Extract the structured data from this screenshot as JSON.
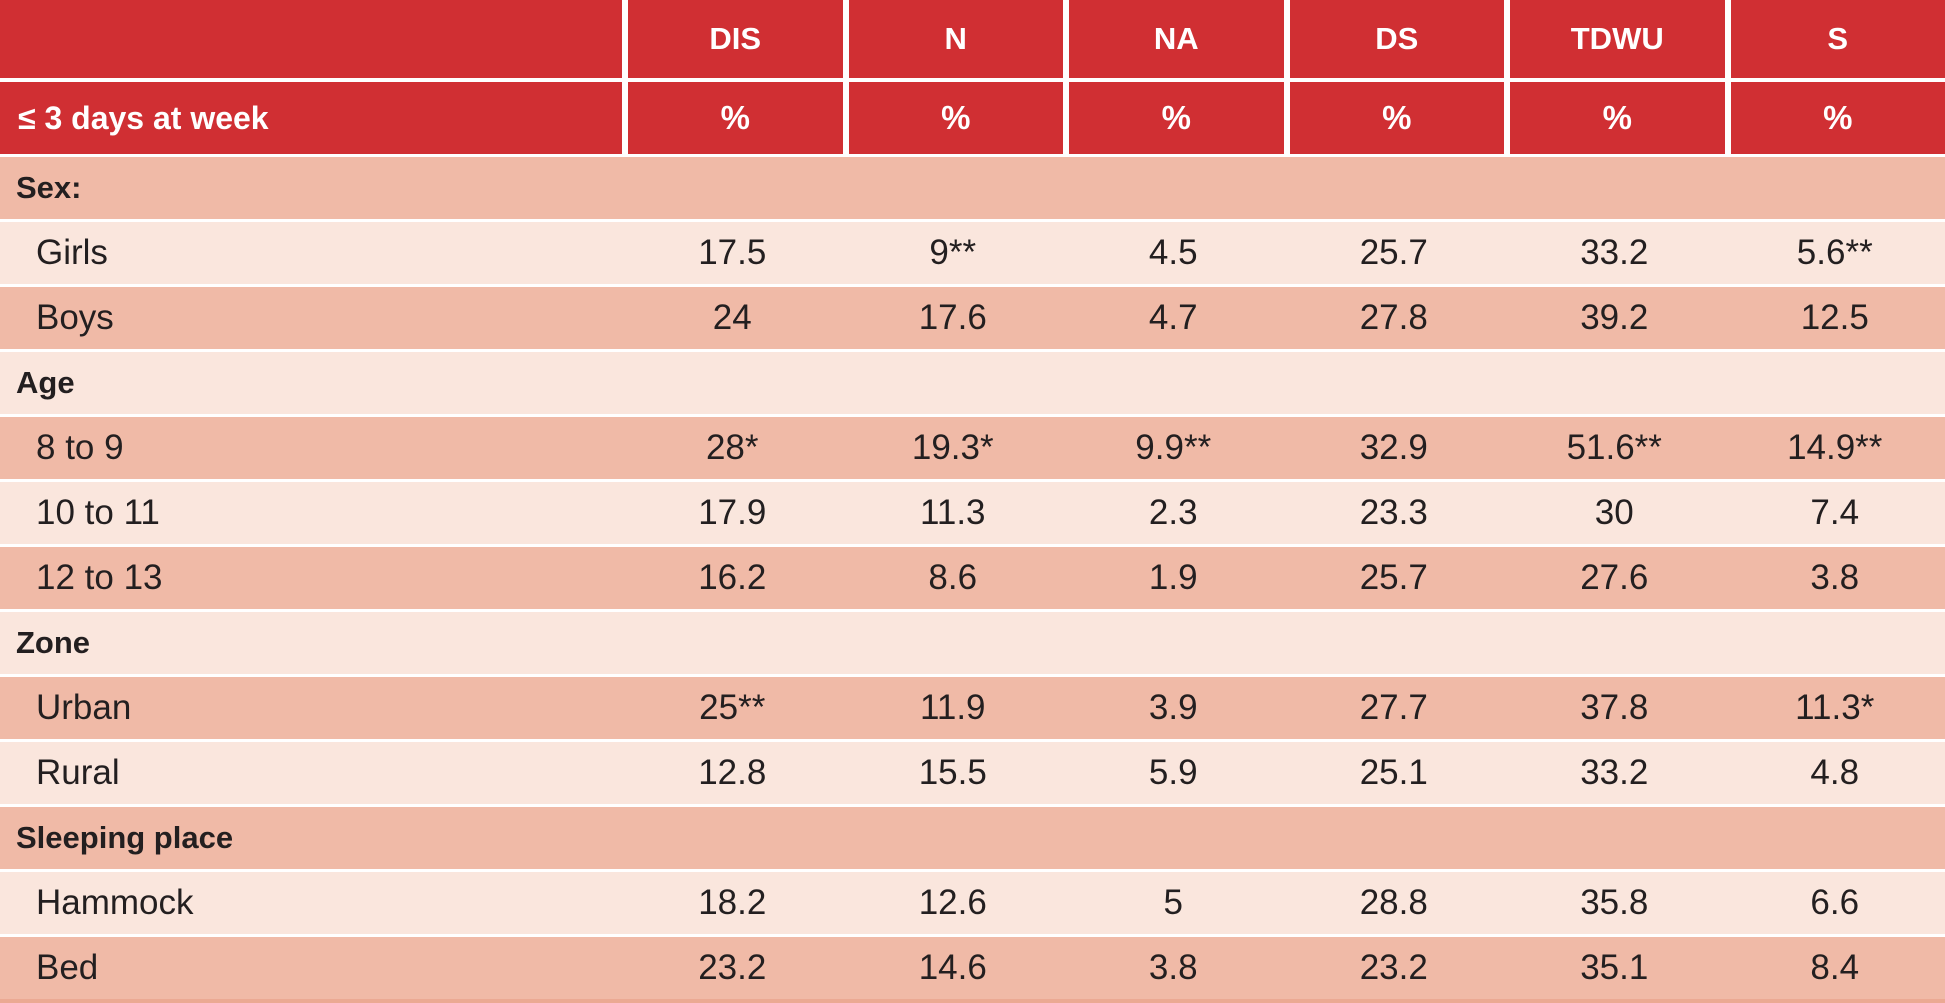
{
  "colors": {
    "header_red": "#d02f33",
    "band_dark": "#f0baa7",
    "band_light": "#fae6dd",
    "text": "#231f20",
    "header_text": "#ffffff"
  },
  "header": {
    "corner_top": "",
    "row_label": "≤ 3 days at week",
    "columns": [
      "DIS",
      "N",
      "NA",
      "DS",
      "TDWU",
      "S"
    ],
    "unit": "%"
  },
  "rows": [
    {
      "type": "section",
      "label": "Sex:"
    },
    {
      "type": "data",
      "label": "Girls",
      "values": [
        "17.5",
        "9**",
        "4.5",
        "25.7",
        "33.2",
        "5.6**"
      ]
    },
    {
      "type": "data",
      "label": "Boys",
      "values": [
        "24",
        "17.6",
        "4.7",
        "27.8",
        "39.2",
        "12.5"
      ]
    },
    {
      "type": "section",
      "label": "Age"
    },
    {
      "type": "data",
      "label": "8 to 9",
      "values": [
        "28*",
        "19.3*",
        "9.9**",
        "32.9",
        "51.6**",
        "14.9**"
      ]
    },
    {
      "type": "data",
      "label": "10 to 11",
      "values": [
        "17.9",
        "11.3",
        "2.3",
        "23.3",
        "30",
        "7.4"
      ]
    },
    {
      "type": "data",
      "label": "12 to 13",
      "values": [
        "16.2",
        "8.6",
        "1.9",
        "25.7",
        "27.6",
        "3.8"
      ]
    },
    {
      "type": "section",
      "label": "Zone"
    },
    {
      "type": "data",
      "label": "Urban",
      "values": [
        "25**",
        "11.9",
        "3.9",
        "27.7",
        "37.8",
        "11.3*"
      ]
    },
    {
      "type": "data",
      "label": "Rural",
      "values": [
        "12.8",
        "15.5",
        "5.9",
        "25.1",
        "33.2",
        "4.8"
      ]
    },
    {
      "type": "section",
      "label": "Sleeping place"
    },
    {
      "type": "data",
      "label": "Hammock",
      "values": [
        "18.2",
        "12.6",
        "5",
        "28.8",
        "35.8",
        "6.6"
      ]
    },
    {
      "type": "data",
      "label": "Bed",
      "values": [
        "23.2",
        "14.6",
        "3.8",
        "23.2",
        "35.1",
        "8.4"
      ]
    }
  ]
}
